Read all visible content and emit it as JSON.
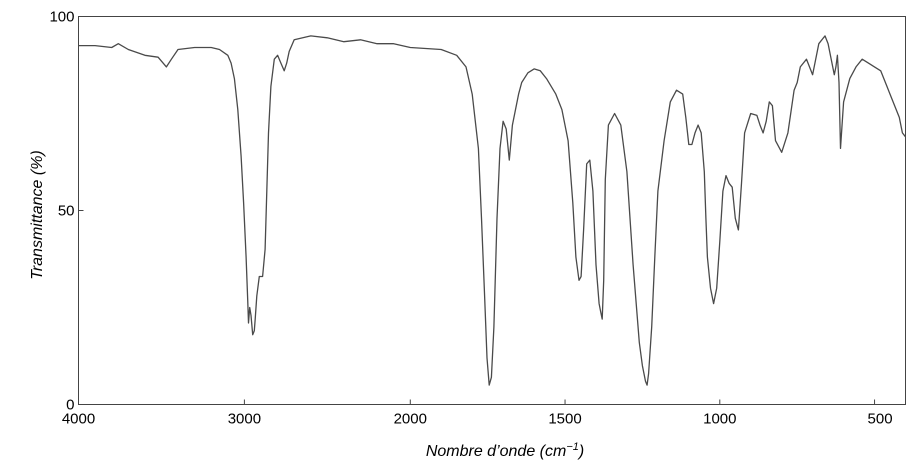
{
  "chart_data": {
    "type": "line",
    "title": "",
    "xlabel": "Nombre d’onde (cm",
    "xlabel_sup": "−1",
    "xlabel_end": ")",
    "ylabel": "Transmittance (%)",
    "xlim": [
      4000,
      400
    ],
    "ylim": [
      0,
      100
    ],
    "x_reversed": true,
    "grid": false,
    "x_ticks": [
      4000,
      3000,
      2000,
      1500,
      1000,
      500
    ],
    "x_tick_labels": [
      "4000",
      "3000",
      "2000",
      "1500",
      "1000",
      "500"
    ],
    "x_axis_segments": [
      [
        4000,
        2000,
        0.0,
        0.4012
      ],
      [
        2000,
        400,
        0.4012,
        1.0
      ]
    ],
    "y_ticks": [
      0,
      50,
      100
    ],
    "y_tick_labels": [
      "0",
      "50",
      "100"
    ],
    "color": "#4a4a4a",
    "series": [
      {
        "x": [
          4000,
          3900,
          3800,
          3760,
          3700,
          3600,
          3520,
          3490,
          3470,
          3440,
          3400,
          3300,
          3200,
          3150,
          3100,
          3080,
          3060,
          3040,
          3020,
          3005,
          2990,
          2980,
          2975,
          2968,
          2960,
          2950,
          2940,
          2935,
          2925,
          2910,
          2890,
          2875,
          2865,
          2855,
          2840,
          2820,
          2800,
          2780,
          2760,
          2745,
          2730,
          2700,
          2600,
          2500,
          2400,
          2300,
          2200,
          2100,
          2000,
          1900,
          1850,
          1820,
          1800,
          1780,
          1770,
          1760,
          1752,
          1745,
          1738,
          1730,
          1720,
          1710,
          1700,
          1690,
          1680,
          1670,
          1660,
          1650,
          1640,
          1620,
          1600,
          1580,
          1560,
          1530,
          1510,
          1490,
          1475,
          1465,
          1455,
          1448,
          1440,
          1430,
          1420,
          1410,
          1400,
          1390,
          1385,
          1380,
          1375,
          1370,
          1360,
          1340,
          1320,
          1300,
          1280,
          1260,
          1250,
          1240,
          1235,
          1230,
          1220,
          1210,
          1200,
          1180,
          1160,
          1140,
          1120,
          1110,
          1100,
          1090,
          1080,
          1070,
          1060,
          1050,
          1045,
          1040,
          1030,
          1020,
          1010,
          1000,
          990,
          980,
          970,
          960,
          950,
          940,
          930,
          920,
          900,
          880,
          870,
          860,
          850,
          840,
          830,
          820,
          800,
          780,
          760,
          750,
          740,
          720,
          700,
          680,
          660,
          650,
          640,
          630,
          625,
          620,
          615,
          610,
          600,
          580,
          560,
          540,
          520,
          500,
          480,
          460,
          440,
          420,
          410,
          400
        ],
        "values": [
          92.5,
          92.5,
          92,
          93,
          91.5,
          90,
          89.5,
          88,
          87,
          89,
          91.5,
          92,
          92,
          91.5,
          90,
          88,
          84,
          76,
          64,
          52,
          38,
          27,
          21,
          25,
          23,
          18,
          19,
          22,
          28,
          33,
          33,
          40,
          55,
          70,
          82,
          89,
          90,
          88,
          86,
          88,
          91,
          94,
          95,
          94.5,
          93.5,
          94,
          93,
          93,
          92,
          91.5,
          90,
          87,
          80,
          66,
          48,
          28,
          12,
          5,
          7,
          20,
          48,
          66,
          73,
          71,
          63,
          72,
          76,
          80,
          83,
          85.5,
          86.5,
          86,
          84,
          80,
          76,
          68,
          52,
          38,
          32,
          33,
          45,
          62,
          63,
          55,
          36,
          26,
          24,
          22,
          32,
          58,
          72,
          75,
          72,
          60,
          36,
          16,
          10,
          6,
          5,
          8,
          20,
          38,
          55,
          68,
          78,
          81,
          80,
          74,
          67,
          67,
          70,
          72,
          70,
          60,
          48,
          38,
          30,
          26,
          30,
          42,
          55,
          59,
          57,
          56,
          48,
          45,
          57,
          70,
          75,
          74.5,
          72,
          70,
          73,
          78,
          77,
          68,
          65,
          70,
          81,
          83,
          87,
          89,
          85,
          93,
          95,
          93,
          89,
          85,
          87,
          90,
          83,
          66,
          78,
          84,
          87,
          89,
          88,
          87,
          86,
          82,
          78,
          74,
          70,
          69
        ]
      }
    ]
  }
}
